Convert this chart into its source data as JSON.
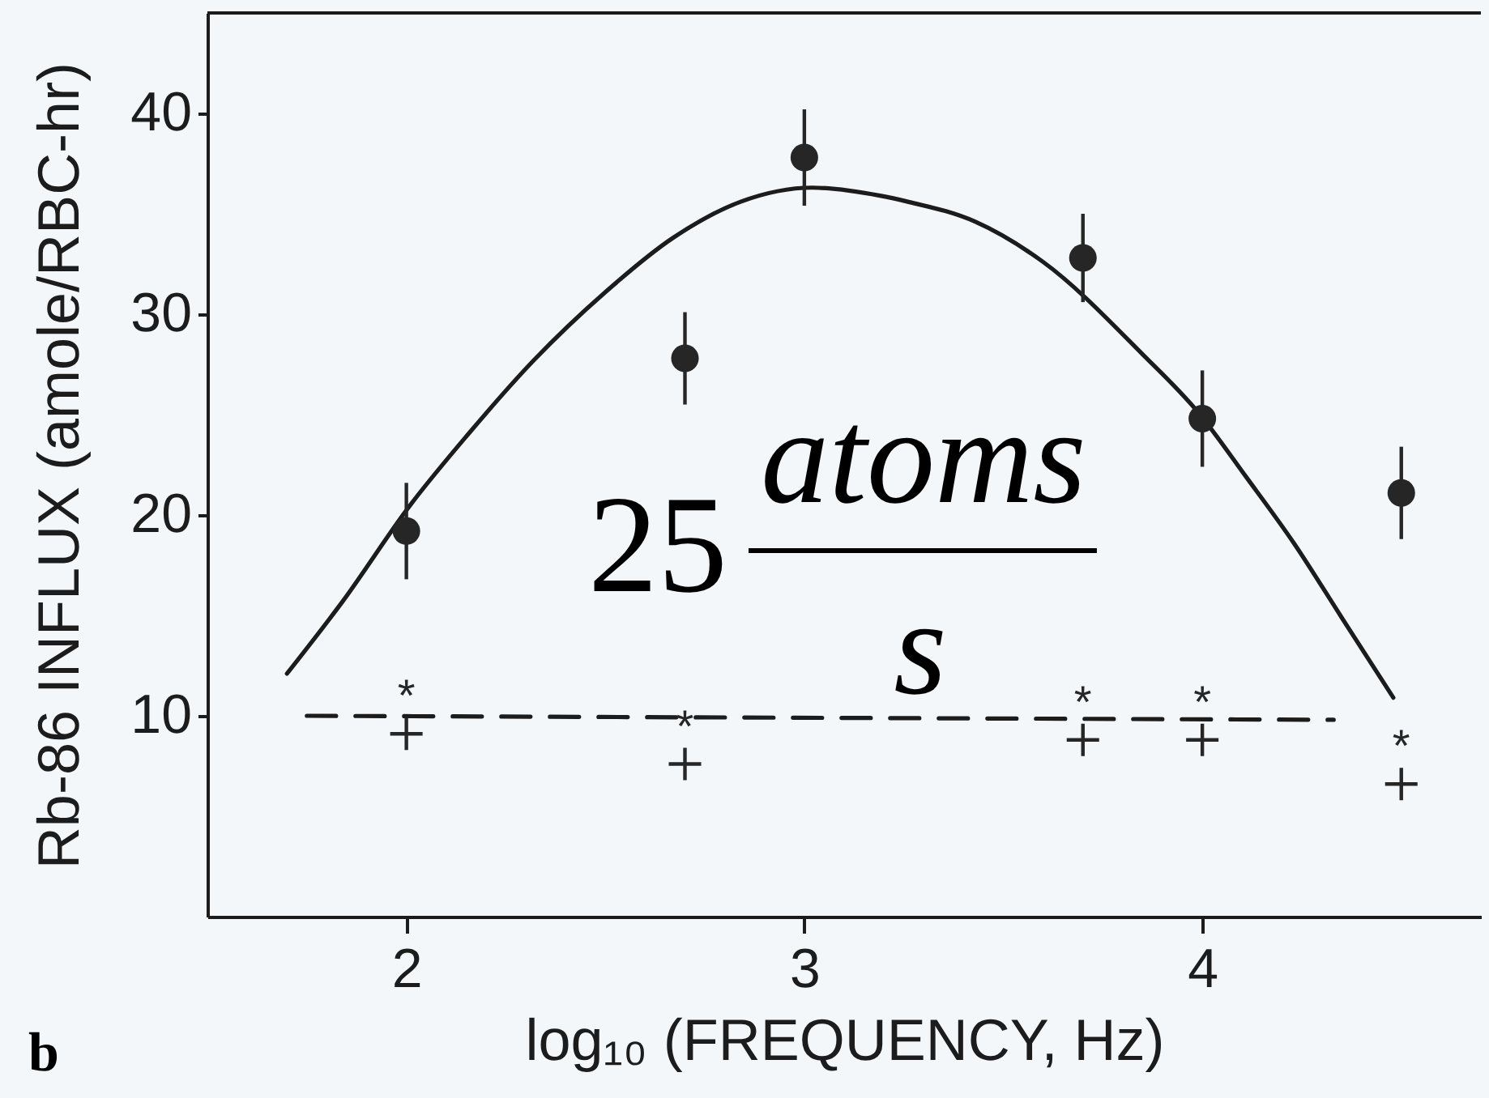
{
  "chart_data": {
    "type": "scatter",
    "xlabel": "log₁₀ (FREQUENCY, Hz)",
    "ylabel": "Rb-86 INFLUX (amole/RBC-hr)",
    "xlim": [
      1.5,
      4.7
    ],
    "ylim": [
      0,
      45
    ],
    "xticks": [
      2,
      3,
      4
    ],
    "yticks": [
      10,
      20,
      30,
      40
    ],
    "grid": false,
    "series": [
      {
        "type": "line",
        "color": "#1c1c1c",
        "line_style": "solid",
        "marker": "none",
        "x": [
          1.7,
          1.84,
          2.01,
          2.15,
          2.32,
          2.5,
          2.67,
          2.84,
          3.02,
          3.19,
          3.26,
          3.43,
          3.6,
          3.85,
          3.99,
          4.11,
          4.23,
          4.35,
          4.48
        ],
        "values": [
          12.1,
          15.7,
          20.5,
          23.9,
          27.7,
          31.1,
          33.8,
          35.6,
          36.3,
          35.9,
          35.6,
          34.6,
          32.6,
          28.0,
          25.1,
          21.9,
          18.6,
          14.9,
          10.9
        ]
      },
      {
        "type": "line",
        "color": "#1c1c1c",
        "line_style": "dashed",
        "marker": "none",
        "x": [
          1.75,
          4.33
        ],
        "values": [
          10,
          9.8
        ]
      },
      {
        "color": "#262626",
        "marker": "circle",
        "x": [
          2,
          2.7,
          3,
          3.7,
          4,
          4.5
        ],
        "values": [
          19.2,
          27.8,
          37.8,
          32.8,
          24.8,
          21.1
        ],
        "errors": [
          2.4,
          2.3,
          2.4,
          2.2,
          2.4,
          2.3
        ]
      },
      {
        "color": "#262626",
        "marker": "cross",
        "x": [
          2,
          2.7,
          3.7,
          4,
          4.5
        ],
        "values": [
          9.1,
          7.6,
          8.8,
          8.8,
          6.6
        ]
      }
    ],
    "annotations": [
      "b",
      "25",
      "atoms",
      "s",
      "*",
      "*",
      "*",
      "*",
      "*"
    ]
  }
}
